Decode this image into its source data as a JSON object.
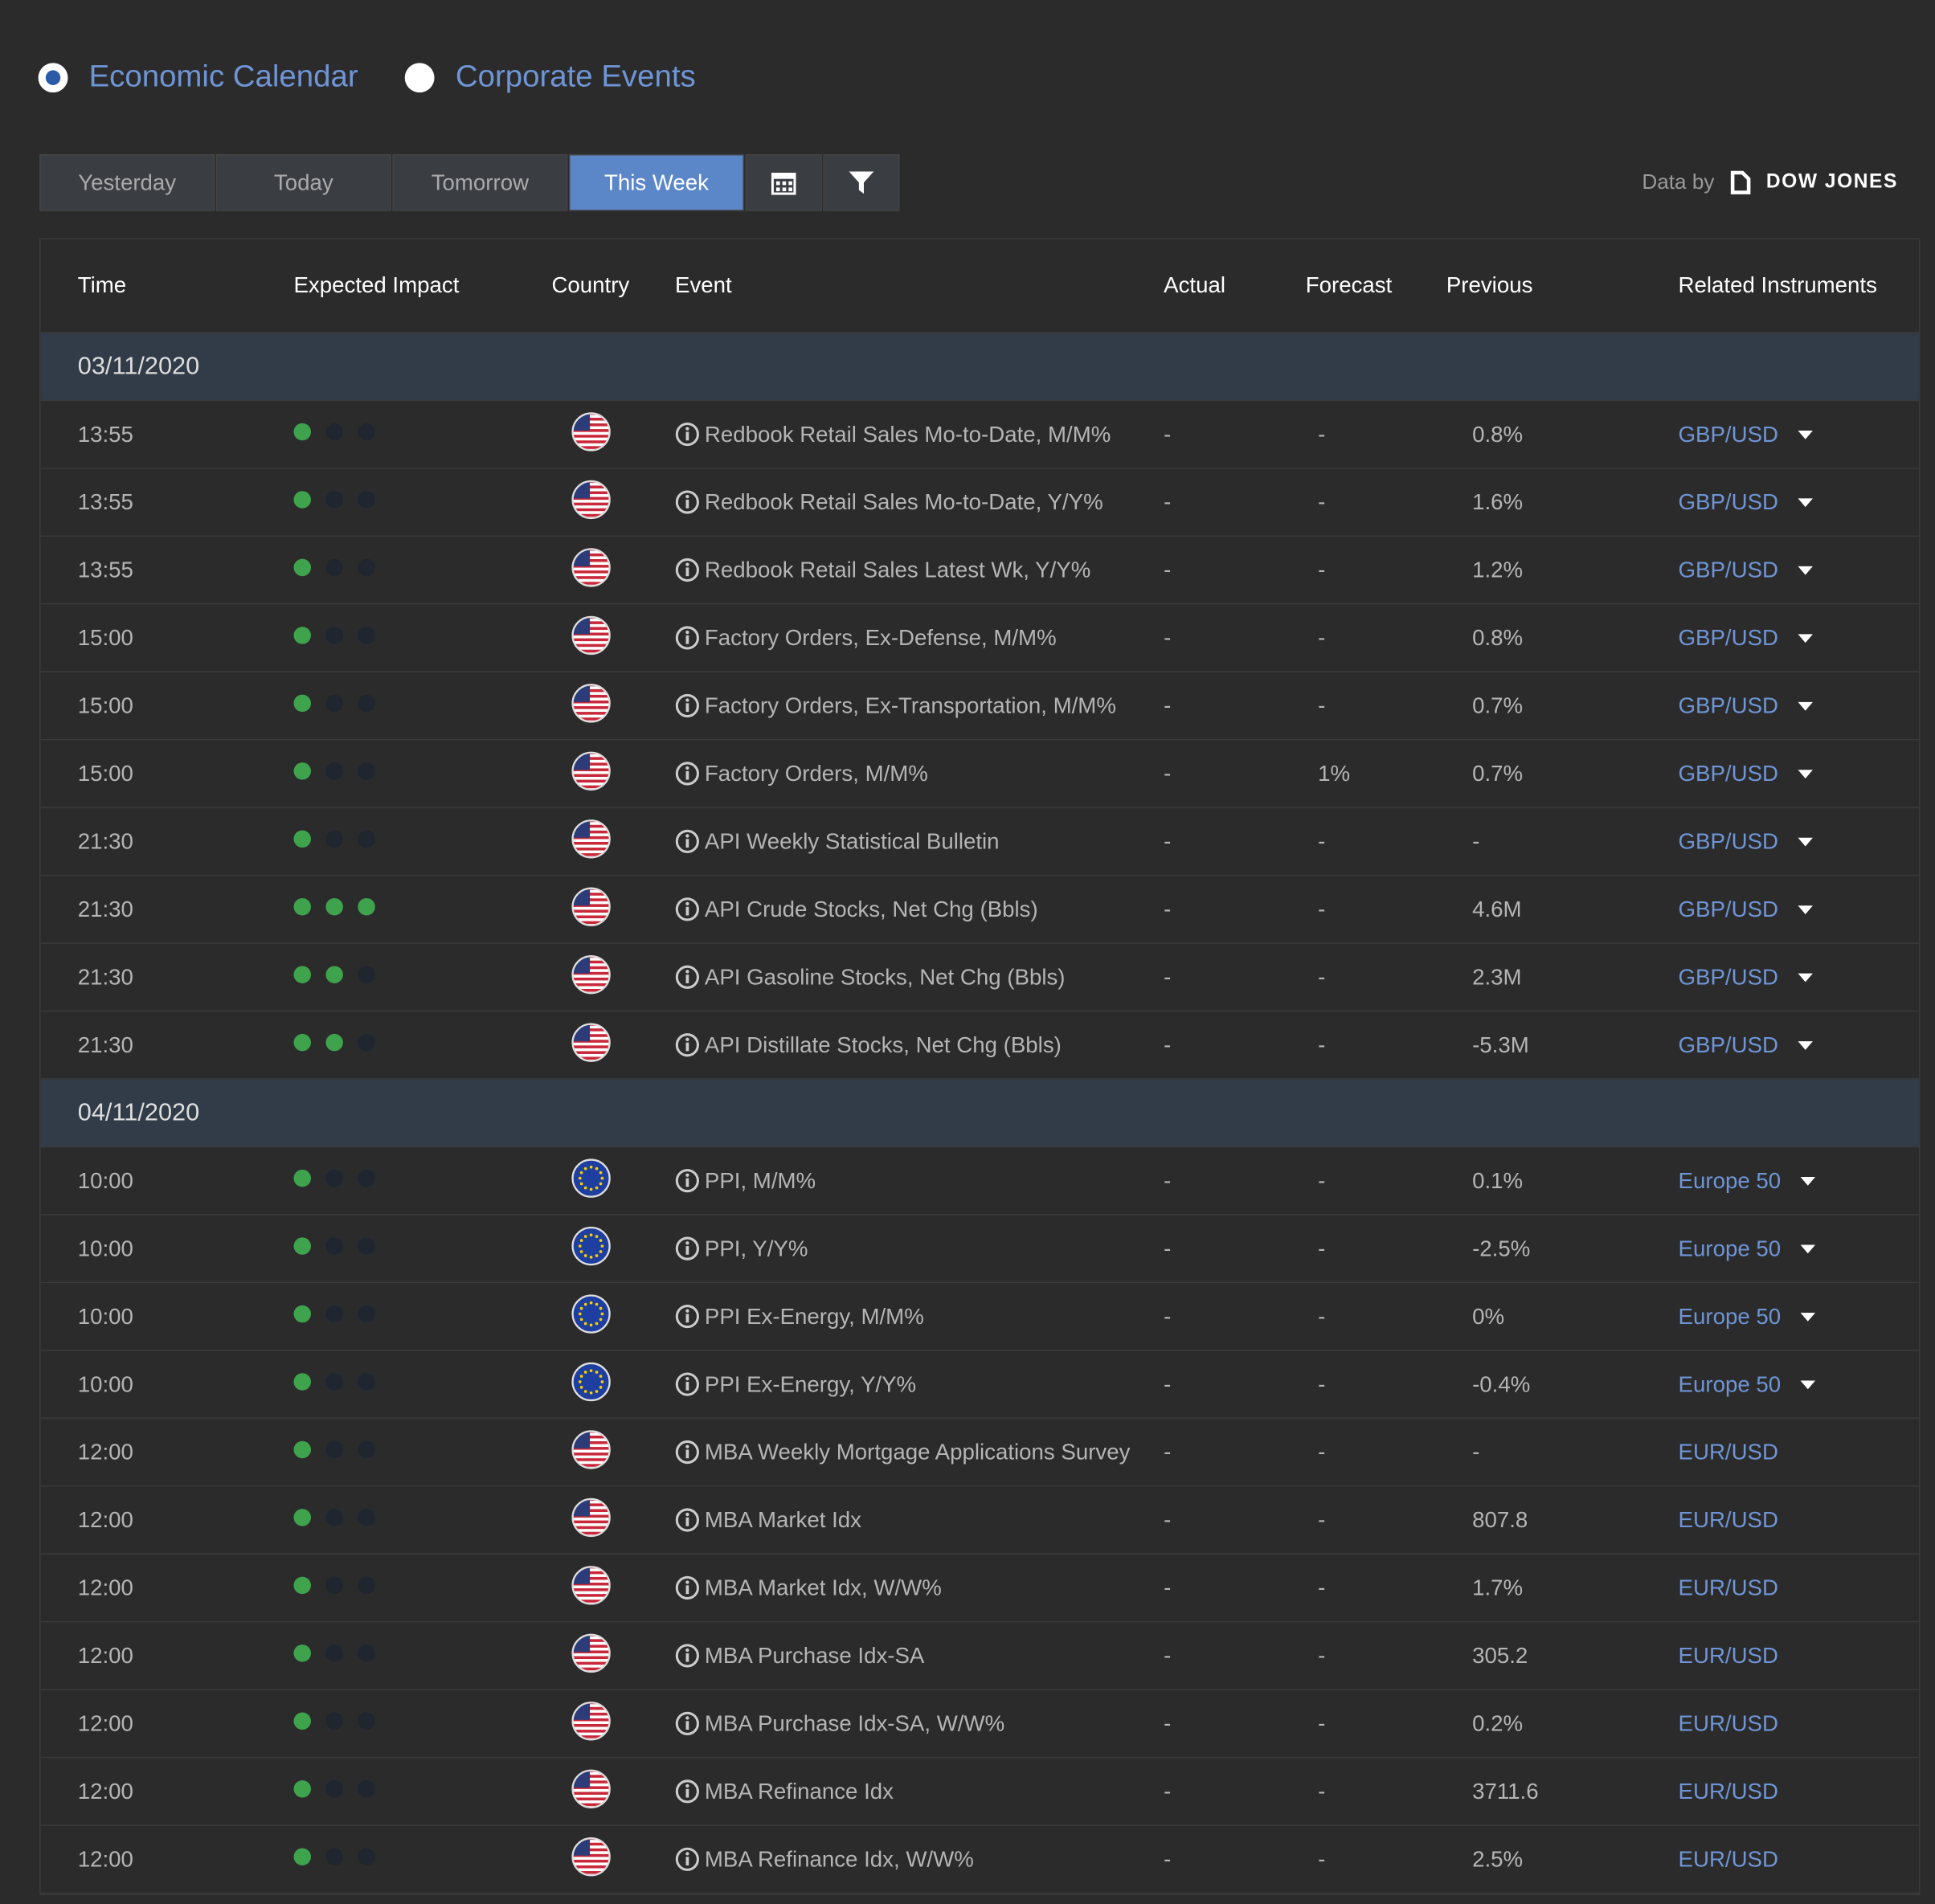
{
  "radios": [
    {
      "label": "Economic Calendar",
      "selected": true
    },
    {
      "label": "Corporate Events",
      "selected": false
    }
  ],
  "tabs": [
    {
      "label": "Yesterday",
      "active": false
    },
    {
      "label": "Today",
      "active": false
    },
    {
      "label": "Tomorrow",
      "active": false
    },
    {
      "label": "This Week",
      "active": true
    }
  ],
  "source": {
    "prefix": "Data by",
    "name": "DOW JONES"
  },
  "table": {
    "headers": [
      "Time",
      "Expected Impact",
      "Country",
      "Event",
      "Actual",
      "Forecast",
      "Previous",
      "Related Instruments"
    ],
    "groups": [
      {
        "date": "03/11/2020",
        "rows": [
          {
            "time": "13:55",
            "impact": 1,
            "flag": "us",
            "event": "Redbook Retail Sales Mo-to-Date, M/M%",
            "actual": "-",
            "forecast": "-",
            "previous": "0.8%",
            "instrument": "GBP/USD",
            "dropdown": true
          },
          {
            "time": "13:55",
            "impact": 1,
            "flag": "us",
            "event": "Redbook Retail Sales Mo-to-Date, Y/Y%",
            "actual": "-",
            "forecast": "-",
            "previous": "1.6%",
            "instrument": "GBP/USD",
            "dropdown": true
          },
          {
            "time": "13:55",
            "impact": 1,
            "flag": "us",
            "event": "Redbook Retail Sales Latest Wk, Y/Y%",
            "actual": "-",
            "forecast": "-",
            "previous": "1.2%",
            "instrument": "GBP/USD",
            "dropdown": true
          },
          {
            "time": "15:00",
            "impact": 1,
            "flag": "us",
            "event": "Factory Orders, Ex-Defense, M/M%",
            "actual": "-",
            "forecast": "-",
            "previous": "0.8%",
            "instrument": "GBP/USD",
            "dropdown": true
          },
          {
            "time": "15:00",
            "impact": 1,
            "flag": "us",
            "event": "Factory Orders, Ex-Transportation, M/M%",
            "actual": "-",
            "forecast": "-",
            "previous": "0.7%",
            "instrument": "GBP/USD",
            "dropdown": true
          },
          {
            "time": "15:00",
            "impact": 1,
            "flag": "us",
            "event": "Factory Orders, M/M%",
            "actual": "-",
            "forecast": "1%",
            "previous": "0.7%",
            "instrument": "GBP/USD",
            "dropdown": true
          },
          {
            "time": "21:30",
            "impact": 1,
            "flag": "us",
            "event": "API Weekly Statistical Bulletin",
            "actual": "-",
            "forecast": "-",
            "previous": "-",
            "instrument": "GBP/USD",
            "dropdown": true
          },
          {
            "time": "21:30",
            "impact": 3,
            "flag": "us",
            "event": "API Crude Stocks, Net Chg (Bbls)",
            "actual": "-",
            "forecast": "-",
            "previous": "4.6M",
            "instrument": "GBP/USD",
            "dropdown": true
          },
          {
            "time": "21:30",
            "impact": 2,
            "flag": "us",
            "event": "API Gasoline Stocks, Net Chg (Bbls)",
            "actual": "-",
            "forecast": "-",
            "previous": "2.3M",
            "instrument": "GBP/USD",
            "dropdown": true
          },
          {
            "time": "21:30",
            "impact": 2,
            "flag": "us",
            "event": "API Distillate Stocks, Net Chg (Bbls)",
            "actual": "-",
            "forecast": "-",
            "previous": "-5.3M",
            "instrument": "GBP/USD",
            "dropdown": true
          }
        ]
      },
      {
        "date": "04/11/2020",
        "rows": [
          {
            "time": "10:00",
            "impact": 1,
            "flag": "eu",
            "event": "PPI, M/M%",
            "actual": "-",
            "forecast": "-",
            "previous": "0.1%",
            "instrument": "Europe 50",
            "dropdown": true
          },
          {
            "time": "10:00",
            "impact": 1,
            "flag": "eu",
            "event": "PPI, Y/Y%",
            "actual": "-",
            "forecast": "-",
            "previous": "-2.5%",
            "instrument": "Europe 50",
            "dropdown": true
          },
          {
            "time": "10:00",
            "impact": 1,
            "flag": "eu",
            "event": "PPI Ex-Energy, M/M%",
            "actual": "-",
            "forecast": "-",
            "previous": "0%",
            "instrument": "Europe 50",
            "dropdown": true
          },
          {
            "time": "10:00",
            "impact": 1,
            "flag": "eu",
            "event": "PPI Ex-Energy, Y/Y%",
            "actual": "-",
            "forecast": "-",
            "previous": "-0.4%",
            "instrument": "Europe 50",
            "dropdown": true
          },
          {
            "time": "12:00",
            "impact": 1,
            "flag": "us",
            "event": "MBA Weekly Mortgage Applications Survey",
            "actual": "-",
            "forecast": "-",
            "previous": "-",
            "instrument": "EUR/USD",
            "dropdown": false
          },
          {
            "time": "12:00",
            "impact": 1,
            "flag": "us",
            "event": "MBA Market Idx",
            "actual": "-",
            "forecast": "-",
            "previous": "807.8",
            "instrument": "EUR/USD",
            "dropdown": false
          },
          {
            "time": "12:00",
            "impact": 1,
            "flag": "us",
            "event": "MBA Market Idx, W/W%",
            "actual": "-",
            "forecast": "-",
            "previous": "1.7%",
            "instrument": "EUR/USD",
            "dropdown": false
          },
          {
            "time": "12:00",
            "impact": 1,
            "flag": "us",
            "event": "MBA Purchase Idx-SA",
            "actual": "-",
            "forecast": "-",
            "previous": "305.2",
            "instrument": "EUR/USD",
            "dropdown": false
          },
          {
            "time": "12:00",
            "impact": 1,
            "flag": "us",
            "event": "MBA Purchase Idx-SA, W/W%",
            "actual": "-",
            "forecast": "-",
            "previous": "0.2%",
            "instrument": "EUR/USD",
            "dropdown": false
          },
          {
            "time": "12:00",
            "impact": 1,
            "flag": "us",
            "event": "MBA Refinance Idx",
            "actual": "-",
            "forecast": "-",
            "previous": "3711.6",
            "instrument": "EUR/USD",
            "dropdown": false
          },
          {
            "time": "12:00",
            "impact": 1,
            "flag": "us",
            "event": "MBA Refinance Idx, W/W%",
            "actual": "-",
            "forecast": "-",
            "previous": "2.5%",
            "instrument": "EUR/USD",
            "dropdown": false
          }
        ]
      }
    ]
  }
}
